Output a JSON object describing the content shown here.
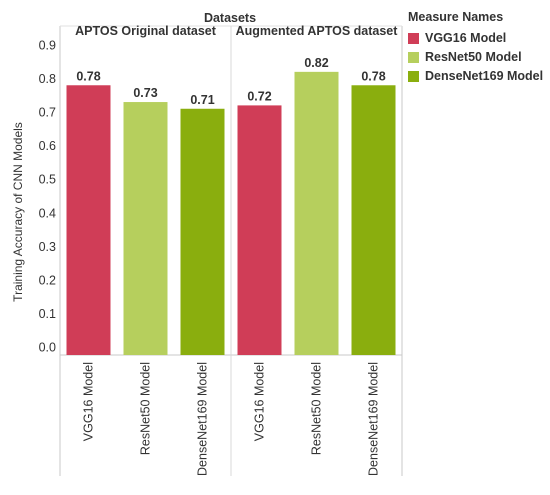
{
  "chart_data": {
    "type": "bar",
    "title": "Datasets",
    "ylabel": "Training Accuracy of CNN Models",
    "ylim": [
      0,
      0.9
    ],
    "yticks": [
      "0.0",
      "0.1",
      "0.2",
      "0.3",
      "0.4",
      "0.5",
      "0.6",
      "0.7",
      "0.8",
      "0.9"
    ],
    "grid": false,
    "legend": {
      "title": "Measure Names",
      "placement": "right"
    },
    "colors": {
      "VGG16 Model": "#d03d57",
      "ResNet50 Model": "#b6cf5d",
      "DenseNet169 Model": "#8aae0e"
    },
    "groups": [
      {
        "label": "APTOS Original dataset",
        "bars": [
          {
            "category": "VGG16 Model",
            "value": 0.78,
            "label": "0.78"
          },
          {
            "category": "ResNet50 Model",
            "value": 0.73,
            "label": "0.73"
          },
          {
            "category": "DenseNet169 Model",
            "value": 0.71,
            "label": "0.71"
          }
        ]
      },
      {
        "label": "Augmented APTOS dataset",
        "bars": [
          {
            "category": "VGG16 Model",
            "value": 0.72,
            "label": "0.72"
          },
          {
            "category": "ResNet50 Model",
            "value": 0.82,
            "label": "0.82"
          },
          {
            "category": "DenseNet169 Model",
            "value": 0.78,
            "label": "0.78"
          }
        ]
      }
    ],
    "series": [
      {
        "name": "VGG16 Model",
        "values": [
          0.78,
          0.72
        ]
      },
      {
        "name": "ResNet50 Model",
        "values": [
          0.73,
          0.82
        ]
      },
      {
        "name": "DenseNet169 Model",
        "values": [
          0.71,
          0.78
        ]
      }
    ]
  }
}
